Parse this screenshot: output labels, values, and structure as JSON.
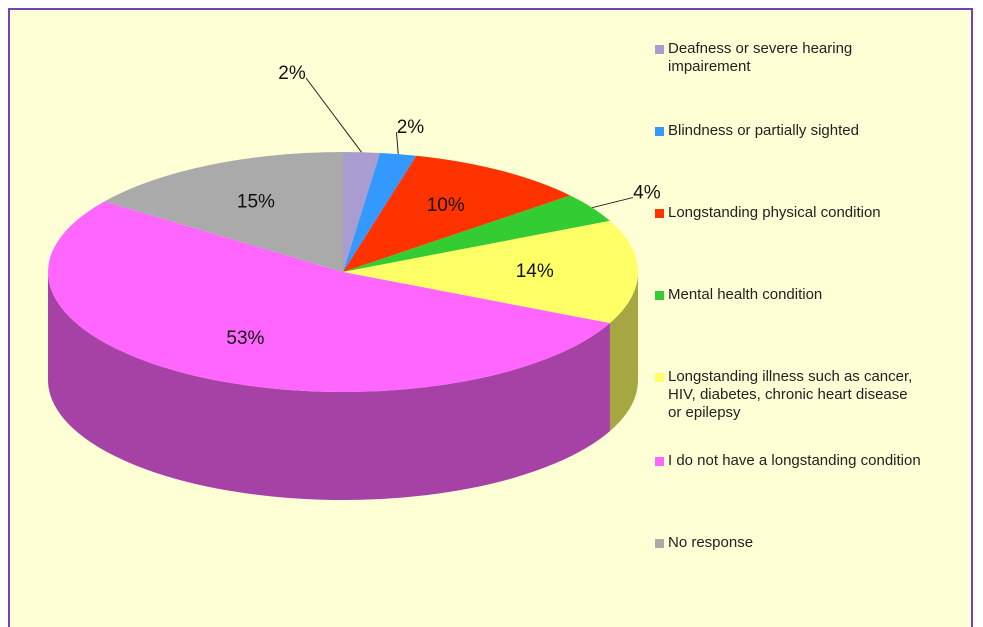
{
  "chart_data": {
    "type": "pie",
    "categories": [
      "Deafness or severe hearing impairement",
      "Blindness or partially sighted",
      "Longstanding physical condition",
      "Mental health condition",
      "Longstanding illness such as cancer, HIV, diabetes, chronic heart disease or epilepsy",
      "I do not have a longstanding condition",
      "No response"
    ],
    "values": [
      2,
      2,
      10,
      4,
      14,
      53,
      15
    ],
    "value_labels": [
      "2%",
      "2%",
      "10%",
      "4%",
      "14%",
      "53%",
      "15%"
    ],
    "colors": [
      "#a99cd0",
      "#3399ff",
      "#ff3300",
      "#33cc33",
      "#ffff66",
      "#ff66ff",
      "#aaaaaa"
    ]
  }
}
